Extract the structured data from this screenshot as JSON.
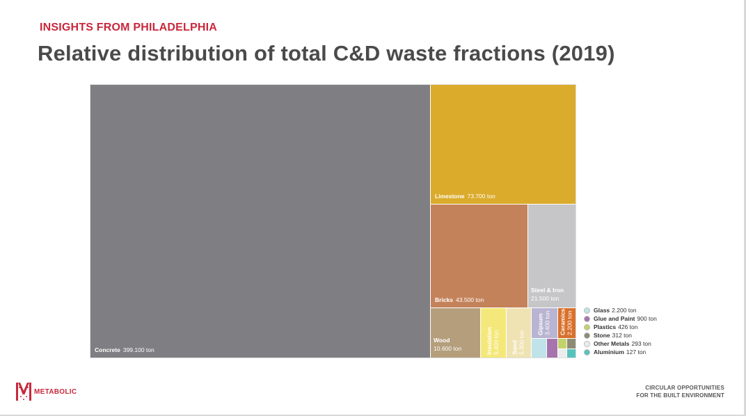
{
  "header": {
    "kicker": "INSIGHTS FROM PHILADELPHIA",
    "title": "Relative distribution of total C&D waste fractions (2019)"
  },
  "chart_data": {
    "type": "treemap",
    "title": "Relative distribution of total C&D waste fractions (2019)",
    "unit": "ton",
    "items": [
      {
        "name": "Concrete",
        "value_label": "399.100 ton",
        "value": 399100,
        "color": "#7f7e82"
      },
      {
        "name": "Limestone",
        "value_label": "73.700 ton",
        "value": 73700,
        "color": "#dbab2c"
      },
      {
        "name": "Bricks",
        "value_label": "43.500 ton",
        "value": 43500,
        "color": "#c4825a"
      },
      {
        "name": "Steel & Iron",
        "value_label": "21.500 ton",
        "value": 21500,
        "color": "#c6c6c8"
      },
      {
        "name": "Wood",
        "value_label": "10.600 ton",
        "value": 10600,
        "color": "#b49e7c"
      },
      {
        "name": "Insulation",
        "value_label": "5.400 ton",
        "value": 5400,
        "color": "#f5e87a"
      },
      {
        "name": "Sand",
        "value_label": "5.300 ton",
        "value": 5300,
        "color": "#efe3b3"
      },
      {
        "name": "Gipsum",
        "value_label": "3.400 ton",
        "value": 3400,
        "color": "#b9b4d2"
      },
      {
        "name": "Ceramics",
        "value_label": "2.200 ton",
        "value": 2200,
        "color": "#d9712c"
      },
      {
        "name": "Glass",
        "value_label": "2.200 ton",
        "value": 2200,
        "color": "#bfe3e8"
      },
      {
        "name": "Glue and Paint",
        "value_label": "900 ton",
        "value": 900,
        "color": "#a675ad"
      },
      {
        "name": "Plastics",
        "value_label": "426 ton",
        "value": 426,
        "color": "#c2d26c"
      },
      {
        "name": "Stone",
        "value_label": "312 ton",
        "value": 312,
        "color": "#8e8a74"
      },
      {
        "name": "Other Metals",
        "value_label": "293 ton",
        "value": 293,
        "color": "#ececec"
      },
      {
        "name": "Aluminium",
        "value_label": "127 ton",
        "value": 127,
        "color": "#58c2bd"
      }
    ],
    "legend": [
      {
        "name": "Glass",
        "value_label": "2.200 ton",
        "color": "#bfe3e8"
      },
      {
        "name": "Glue and Paint",
        "value_label": "900 ton",
        "color": "#a675ad"
      },
      {
        "name": "Plastics",
        "value_label": "426 ton",
        "color": "#c2d26c"
      },
      {
        "name": "Stone",
        "value_label": "312 ton",
        "color": "#8e8a74"
      },
      {
        "name": "Other Metals",
        "value_label": "293 ton",
        "color": "#ececec"
      },
      {
        "name": "Aluminium",
        "value_label": "127 ton",
        "color": "#58c2bd"
      }
    ]
  },
  "footer": {
    "logo_text": "METABOLIC",
    "line1": "CIRCULAR OPPORTUNITIES",
    "line2": "FOR THE BUILT ENVIRONMENT"
  }
}
